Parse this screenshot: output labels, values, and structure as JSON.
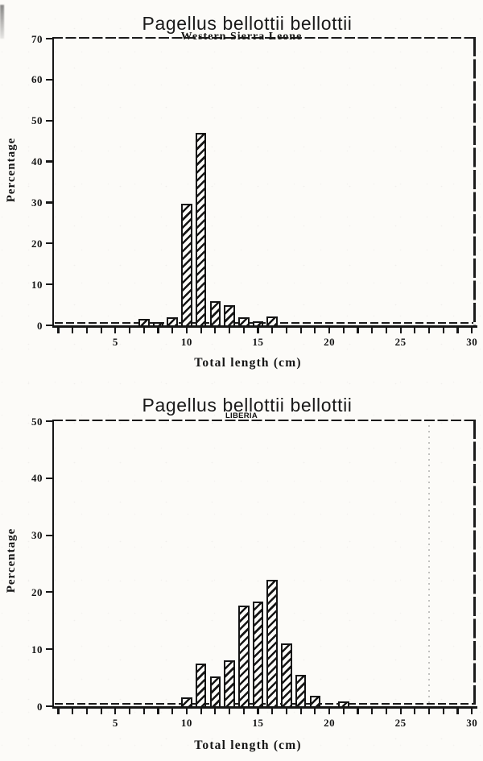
{
  "figure": {
    "background": "#fcfbf8",
    "ink_color": "#161616",
    "species": "Pagellus bellottii bellottii"
  },
  "chart_data": [
    {
      "type": "bar",
      "title": "Pagellus bellottii bellottii",
      "subtitle": "Western Sierra Leone",
      "xlabel": "Total length (cm)",
      "ylabel": "Percentage",
      "xlim": [
        0,
        30
      ],
      "ylim": [
        0,
        70
      ],
      "yticks": [
        0,
        10,
        20,
        30,
        40,
        50,
        60,
        70
      ],
      "xtick_minor_range": [
        1,
        30
      ],
      "xtick_labels": [
        5,
        10,
        15,
        20,
        25,
        30
      ],
      "bin_width_cm": 1,
      "grid": false,
      "legend": "none",
      "hatch": "diagonal-forward",
      "frame": "box with dashed top and right edges, dashed zero line",
      "categories": [
        7,
        8,
        9,
        10,
        11,
        12,
        13,
        14,
        15,
        16
      ],
      "values": [
        1.5,
        0.8,
        2.0,
        29.7,
        47.0,
        6.0,
        5.0,
        2.0,
        1.0,
        2.2
      ]
    },
    {
      "type": "bar",
      "title": "Pagellus bellottii bellottii",
      "subtitle": "LIBERIA",
      "xlabel": "Total length (cm)",
      "ylabel": "Percentage",
      "xlim": [
        0,
        30
      ],
      "ylim": [
        0,
        50
      ],
      "yticks": [
        0,
        10,
        20,
        30,
        40,
        50
      ],
      "xtick_minor_range": [
        1,
        30
      ],
      "xtick_labels": [
        5,
        10,
        15,
        20,
        25,
        30
      ],
      "bin_width_cm": 1,
      "grid": false,
      "legend": "none",
      "hatch": "diagonal-forward",
      "frame": "box with dashed top and right edges, dashed zero line",
      "categories": [
        10,
        11,
        12,
        13,
        14,
        15,
        16,
        17,
        18,
        19,
        20,
        21
      ],
      "values": [
        1.5,
        7.5,
        5.2,
        8.0,
        17.6,
        18.4,
        22.2,
        11.0,
        5.5,
        1.8,
        0,
        0.9
      ]
    }
  ]
}
